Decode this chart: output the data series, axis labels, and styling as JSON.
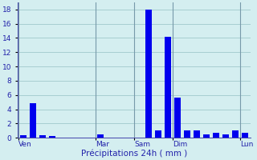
{
  "values": [
    0.3,
    4.8,
    0.3,
    0.2,
    0.0,
    0.0,
    0.0,
    0.0,
    0.5,
    0.0,
    0.0,
    0.0,
    0.0,
    18.0,
    1.0,
    14.2,
    5.6,
    1.0,
    1.0,
    0.5,
    0.7,
    0.5,
    1.0,
    0.7
  ],
  "n_bars": 24,
  "bar_color": "#0000ee",
  "bg_color": "#d4eef0",
  "grid_color": "#a0c8cc",
  "axis_color": "#4444aa",
  "label_color": "#2222aa",
  "day_labels": [
    "Ven",
    "Mar",
    "Sam",
    "Dim",
    "Lun"
  ],
  "day_tick_positions": [
    0,
    8,
    12,
    16,
    23
  ],
  "vline_positions": [
    0,
    8,
    12,
    16,
    23
  ],
  "xlabel": "Précipitations 24h ( mm )",
  "ylim": [
    0,
    19
  ],
  "yticks": [
    0,
    2,
    4,
    6,
    8,
    10,
    12,
    14,
    16,
    18
  ],
  "label_fontsize": 7.5,
  "tick_fontsize": 6.5
}
